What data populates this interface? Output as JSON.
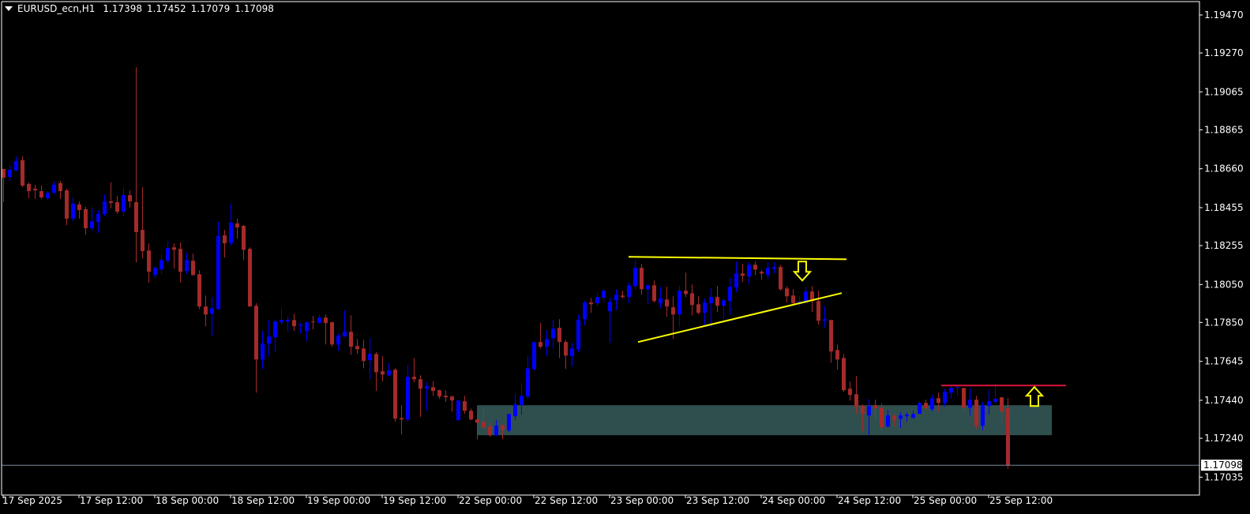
{
  "header": {
    "symbol": "EURUSD_ecn,H1",
    "open": "1.17398",
    "high": "1.17452",
    "low": "1.17079",
    "close": "1.17098",
    "menu_icon": "triangle-down-icon"
  },
  "colors": {
    "background": "#000000",
    "bull": "#0000ff",
    "bear": "#a52a2a",
    "axis": "#ffffff",
    "zone": "#2f4f4f",
    "trendline": "#ffff00",
    "resistance_line": "#dc143c",
    "bid_line": "#778899"
  },
  "chart_data": {
    "type": "candlestick",
    "grid": false,
    "x_tick_labels": [
      "17 Sep 2025",
      "17 Sep 12:00",
      "18 Sep 00:00",
      "18 Sep 12:00",
      "19 Sep 00:00",
      "19 Sep 12:00",
      "22 Sep 00:00",
      "22 Sep 12:00",
      "23 Sep 00:00",
      "23 Sep 12:00",
      "24 Sep 00:00",
      "24 Sep 12:00",
      "25 Sep 00:00",
      "25 Sep 12:00"
    ],
    "y_tick_labels": [
      "1.19470",
      "1.19270",
      "1.19065",
      "1.18865",
      "1.18660",
      "1.18455",
      "1.18255",
      "1.18050",
      "1.17850",
      "1.17645",
      "1.17440",
      "1.17240",
      "1.17035"
    ],
    "bid_price": "1.17098",
    "candles_ohlc": [
      [
        1.18659,
        1.18659,
        1.18484,
        1.18613
      ],
      [
        1.18617,
        1.1868,
        1.18596,
        1.18655
      ],
      [
        1.1865,
        1.18725,
        1.18646,
        1.187
      ],
      [
        1.18705,
        1.18725,
        1.18563,
        1.18571
      ],
      [
        1.1858,
        1.18588,
        1.18505,
        1.18542
      ],
      [
        1.18555,
        1.18576,
        1.18501,
        1.18546
      ],
      [
        1.18542,
        1.18571,
        1.18501,
        1.18509
      ],
      [
        1.18505,
        1.18542,
        1.18496,
        1.18534
      ],
      [
        1.18534,
        1.18592,
        1.18525,
        1.18576
      ],
      [
        1.18584,
        1.18596,
        1.18501,
        1.18542
      ],
      [
        1.18546,
        1.18555,
        1.18363,
        1.18397
      ],
      [
        1.18397,
        1.18509,
        1.18384,
        1.18476
      ],
      [
        1.18472,
        1.18488,
        1.18397,
        1.18442
      ],
      [
        1.18447,
        1.18459,
        1.18313,
        1.18347
      ],
      [
        1.18347,
        1.18451,
        1.18334,
        1.18384
      ],
      [
        1.1838,
        1.18442,
        1.18322,
        1.18422
      ],
      [
        1.18422,
        1.18525,
        1.18409,
        1.18488
      ],
      [
        1.18488,
        1.18588,
        1.18451,
        1.1848
      ],
      [
        1.18484,
        1.18517,
        1.18422,
        1.18434
      ],
      [
        1.18434,
        1.18559,
        1.18409,
        1.18521
      ],
      [
        1.18521,
        1.18546,
        1.18455,
        1.18488
      ],
      [
        1.18484,
        1.19195,
        1.18167,
        1.18326
      ],
      [
        1.18338,
        1.18563,
        1.18188,
        1.18226
      ],
      [
        1.18229,
        1.18267,
        1.18059,
        1.18117
      ],
      [
        1.181,
        1.18146,
        1.18084,
        1.18138
      ],
      [
        1.18129,
        1.18208,
        1.18104,
        1.18179
      ],
      [
        1.18175,
        1.18279,
        1.18163,
        1.18242
      ],
      [
        1.18246,
        1.18267,
        1.18134,
        1.18233
      ],
      [
        1.18238,
        1.18271,
        1.18059,
        1.18117
      ],
      [
        1.18121,
        1.18217,
        1.18104,
        1.18179
      ],
      [
        1.18175,
        1.18213,
        1.18096,
        1.181
      ],
      [
        1.18104,
        1.18125,
        1.17921,
        1.17934
      ],
      [
        1.17934,
        1.17992,
        1.1783,
        1.17892
      ],
      [
        1.17896,
        1.17984,
        1.1778,
        1.17925
      ],
      [
        1.17921,
        1.1838,
        1.17917,
        1.18305
      ],
      [
        1.18309,
        1.18338,
        1.18192,
        1.18267
      ],
      [
        1.18267,
        1.18476,
        1.18254,
        1.18376
      ],
      [
        1.18372,
        1.18397,
        1.18292,
        1.18351
      ],
      [
        1.18359,
        1.18363,
        1.18179,
        1.18233
      ],
      [
        1.18238,
        1.18246,
        1.17934,
        1.17934
      ],
      [
        1.17938,
        1.17951,
        1.1748,
        1.17655
      ],
      [
        1.17655,
        1.17805,
        1.17605,
        1.17738
      ],
      [
        1.17738,
        1.17863,
        1.17672,
        1.17776
      ],
      [
        1.17772,
        1.17863,
        1.17697,
        1.17855
      ],
      [
        1.17851,
        1.17926,
        1.17838,
        1.17863
      ],
      [
        1.17855,
        1.1788,
        1.17801,
        1.17863
      ],
      [
        1.17863,
        1.17896,
        1.17805,
        1.1783
      ],
      [
        1.17834,
        1.17847,
        1.17792,
        1.17838
      ],
      [
        1.17805,
        1.17855,
        1.17751,
        1.17851
      ],
      [
        1.17855,
        1.17884,
        1.17813,
        1.17851
      ],
      [
        1.17847,
        1.17892,
        1.17847,
        1.17876
      ],
      [
        1.17876,
        1.17892,
        1.17734,
        1.17847
      ],
      [
        1.17851,
        1.17855,
        1.17722,
        1.17734
      ],
      [
        1.17734,
        1.17792,
        1.17701,
        1.1778
      ],
      [
        1.17776,
        1.17913,
        1.17776,
        1.17801
      ],
      [
        1.17801,
        1.17888,
        1.1768,
        1.17722
      ],
      [
        1.17726,
        1.17763,
        1.17684,
        1.17709
      ],
      [
        1.17713,
        1.17759,
        1.17609,
        1.17647
      ],
      [
        1.17651,
        1.17767,
        1.17551,
        1.17684
      ],
      [
        1.17684,
        1.17693,
        1.17489,
        1.17588
      ],
      [
        1.17593,
        1.17672,
        1.17539,
        1.17576
      ],
      [
        1.17572,
        1.17638,
        1.17564,
        1.17597
      ],
      [
        1.17601,
        1.17609,
        1.17327,
        1.17343
      ],
      [
        1.17347,
        1.17414,
        1.1726,
        1.17339
      ],
      [
        1.17339,
        1.17626,
        1.17327,
        1.17564
      ],
      [
        1.17564,
        1.17663,
        1.17535,
        1.17551
      ],
      [
        1.17551,
        1.17572,
        1.17352,
        1.17501
      ],
      [
        1.17501,
        1.17535,
        1.17385,
        1.17514
      ],
      [
        1.17509,
        1.17539,
        1.17464,
        1.17489
      ],
      [
        1.17493,
        1.17497,
        1.17447,
        1.1746
      ],
      [
        1.17464,
        1.17493,
        1.17431,
        1.17456
      ],
      [
        1.1746,
        1.17464,
        1.17381,
        1.17439
      ],
      [
        1.17335,
        1.17439,
        1.17335,
        1.17439
      ],
      [
        1.17435,
        1.17464,
        1.17368,
        1.17385
      ],
      [
        1.17385,
        1.17397,
        1.17335,
        1.17339
      ],
      [
        1.17339,
        1.1736,
        1.17235,
        1.17322
      ],
      [
        1.17327,
        1.17393,
        1.17297,
        1.17297
      ],
      [
        1.17302,
        1.17322,
        1.17248,
        1.17256
      ],
      [
        1.17256,
        1.17335,
        1.17252,
        1.17306
      ],
      [
        1.1731,
        1.1731,
        1.17235,
        1.17285
      ],
      [
        1.17281,
        1.17368,
        1.17272,
        1.17368
      ],
      [
        1.17356,
        1.17472,
        1.17335,
        1.17418
      ],
      [
        1.17414,
        1.1753,
        1.17364,
        1.17464
      ],
      [
        1.1746,
        1.17676,
        1.17447,
        1.17609
      ],
      [
        1.17605,
        1.17747,
        1.17597,
        1.17747
      ],
      [
        1.17747,
        1.17847,
        1.17713,
        1.17722
      ],
      [
        1.17722,
        1.17809,
        1.17672,
        1.17763
      ],
      [
        1.17767,
        1.17863,
        1.17713,
        1.17817
      ],
      [
        1.17822,
        1.17867,
        1.17663,
        1.17747
      ],
      [
        1.17747,
        1.17759,
        1.17605,
        1.17676
      ],
      [
        1.17672,
        1.17742,
        1.17618,
        1.17713
      ],
      [
        1.17709,
        1.17892,
        1.17693,
        1.17863
      ],
      [
        1.17867,
        1.17963,
        1.17834,
        1.17955
      ],
      [
        1.17955,
        1.1798,
        1.17901,
        1.17946
      ],
      [
        1.17951,
        1.18009,
        1.17934,
        1.17984
      ],
      [
        1.1798,
        1.18025,
        1.17959,
        1.18017
      ],
      [
        1.17909,
        1.1798,
        1.17742,
        1.17959
      ],
      [
        1.17967,
        1.18025,
        1.17913,
        1.17996
      ],
      [
        1.17992,
        1.18017,
        1.17976,
        1.17984
      ],
      [
        1.17984,
        1.18063,
        1.17951,
        1.18046
      ],
      [
        1.18042,
        1.18179,
        1.18021,
        1.18138
      ],
      [
        1.18138,
        1.18158,
        1.17996,
        1.18025
      ],
      [
        1.18025,
        1.18054,
        1.17946,
        1.18046
      ],
      [
        1.18046,
        1.18071,
        1.17955,
        1.17963
      ],
      [
        1.17951,
        1.18038,
        1.17926,
        1.17976
      ],
      [
        1.17971,
        1.18038,
        1.1788,
        1.17934
      ],
      [
        1.1793,
        1.17988,
        1.17763,
        1.17892
      ],
      [
        1.17892,
        1.18042,
        1.17826,
        1.18017
      ],
      [
        1.18017,
        1.18113,
        1.17984,
        1.18
      ],
      [
        1.18004,
        1.1805,
        1.17888,
        1.17942
      ],
      [
        1.17946,
        1.17988,
        1.17892,
        1.17901
      ],
      [
        1.17901,
        1.17976,
        1.1783,
        1.17955
      ],
      [
        1.17951,
        1.18034,
        1.17826,
        1.17984
      ],
      [
        1.17984,
        1.18042,
        1.17905,
        1.17938
      ],
      [
        1.17938,
        1.17976,
        1.17867,
        1.17967
      ],
      [
        1.17963,
        1.18084,
        1.17892,
        1.18038
      ],
      [
        1.18034,
        1.18171,
        1.18009,
        1.18108
      ],
      [
        1.18108,
        1.18158,
        1.18063,
        1.18096
      ],
      [
        1.18092,
        1.18167,
        1.1805,
        1.18154
      ],
      [
        1.18154,
        1.18171,
        1.181,
        1.18129
      ],
      [
        1.18117,
        1.18125,
        1.18075,
        1.18108
      ],
      [
        1.181,
        1.18167,
        1.18079,
        1.18138
      ],
      [
        1.18133,
        1.18167,
        1.18108,
        1.18142
      ],
      [
        1.18142,
        1.18154,
        1.18017,
        1.18025
      ],
      [
        1.18029,
        1.18042,
        1.17955,
        1.17988
      ],
      [
        1.17992,
        1.18025,
        1.17942,
        1.17951
      ],
      [
        1.17946,
        1.17988,
        1.1793,
        1.17959
      ],
      [
        1.17955,
        1.18034,
        1.17951,
        1.18013
      ],
      [
        1.18013,
        1.18042,
        1.17905,
        1.17963
      ],
      [
        1.17963,
        1.18017,
        1.17838,
        1.17859
      ],
      [
        1.17859,
        1.17938,
        1.17822,
        1.17867
      ],
      [
        1.17863,
        1.17863,
        1.17638,
        1.17697
      ],
      [
        1.17705,
        1.17734,
        1.17601,
        1.17655
      ],
      [
        1.17663,
        1.17684,
        1.17485,
        1.17493
      ],
      [
        1.17501,
        1.17539,
        1.17439,
        1.17468
      ],
      [
        1.17472,
        1.17568,
        1.17368,
        1.17406
      ],
      [
        1.1741,
        1.17418,
        1.17277,
        1.17368
      ],
      [
        1.1736,
        1.17447,
        1.17256,
        1.1741
      ],
      [
        1.17414,
        1.17443,
        1.17343,
        1.17397
      ],
      [
        1.17401,
        1.17422,
        1.17281,
        1.17297
      ],
      [
        1.17302,
        1.17389,
        1.17297,
        1.1736
      ],
      [
        1.17356,
        1.17368,
        1.17302,
        1.17339
      ],
      [
        1.17343,
        1.17376,
        1.17293,
        1.1736
      ],
      [
        1.17356,
        1.17376,
        1.17327,
        1.17364
      ],
      [
        1.17347,
        1.17385,
        1.17347,
        1.17368
      ],
      [
        1.17368,
        1.17435,
        1.17368,
        1.17426
      ],
      [
        1.17426,
        1.17443,
        1.17397,
        1.17397
      ],
      [
        1.17393,
        1.17468,
        1.17381,
        1.17451
      ],
      [
        1.17451,
        1.1748,
        1.17381,
        1.17426
      ],
      [
        1.17426,
        1.17501,
        1.17406,
        1.17485
      ],
      [
        1.1748,
        1.17518,
        1.17451,
        1.17505
      ],
      [
        1.17505,
        1.17518,
        1.17464,
        1.17509
      ],
      [
        1.17505,
        1.17505,
        1.17381,
        1.17401
      ],
      [
        1.17401,
        1.17505,
        1.1736,
        1.17443
      ],
      [
        1.17443,
        1.17464,
        1.17289,
        1.17306
      ],
      [
        1.17306,
        1.17431,
        1.17281,
        1.17414
      ],
      [
        1.1741,
        1.17497,
        1.17364,
        1.17435
      ],
      [
        1.17431,
        1.17526,
        1.17418,
        1.17447
      ],
      [
        1.17456,
        1.17456,
        1.17318,
        1.17381
      ],
      [
        1.17398,
        1.17452,
        1.17079,
        1.17098
      ]
    ],
    "annotations": {
      "zone": {
        "from": "22 Sep 03:00",
        "to": "25 Sep 22:00",
        "top": 1.17414,
        "bottom": 1.17256
      },
      "top_line": {
        "from": "23 Sep 03:00",
        "to": "24 Sep 13:30",
        "price_start": 1.18196,
        "price_end": 1.18183
      },
      "trend_line": {
        "from": "23 Sep 04:30",
        "to": "24 Sep 12:45",
        "price_start": 1.17747,
        "price_end": 1.18005
      },
      "resistance_line": {
        "from": "25 Sep 04:30",
        "to": "26 Sep 00:15",
        "price": 1.17518
      },
      "down_arrow": {
        "time": "24 Sep 06:30",
        "price": 1.18171
      },
      "up_arrow": {
        "time": "25 Sep 19:15",
        "price": 1.17518
      }
    }
  }
}
